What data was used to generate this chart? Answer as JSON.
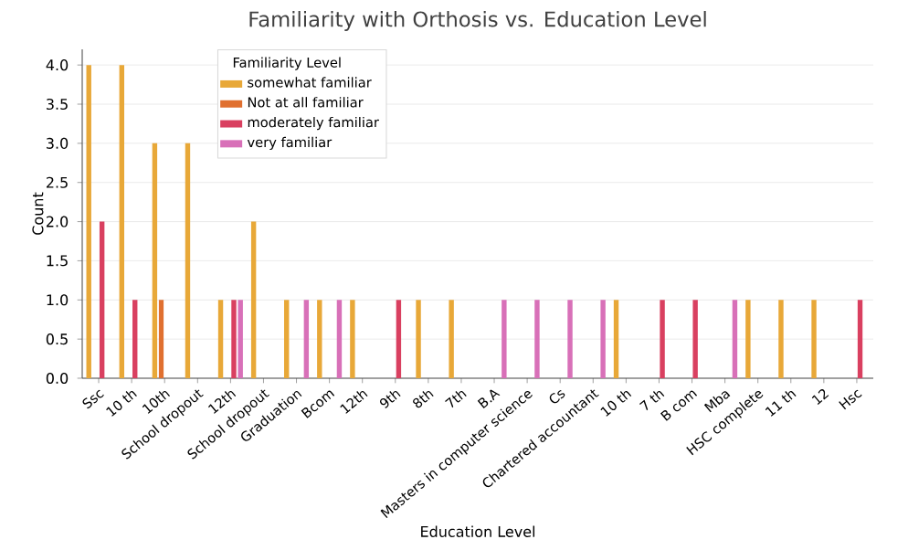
{
  "chart_data": {
    "type": "bar",
    "title": "Familiarity with Orthosis vs. Education Level",
    "xlabel": "Education Level",
    "ylabel": "Count",
    "legend_title": "Familiarity Level",
    "categories": [
      "Ssc",
      "10 th",
      "10th",
      "School dropout",
      "12th",
      "School dropout",
      "Graduation",
      "Bcom",
      "12th",
      "9th",
      "8th",
      "7th",
      "B.A",
      "Masters in computer science",
      "Cs",
      "Chartered accountant",
      "10 th",
      "7 th",
      "B com",
      "Mba",
      "HSC complete",
      "11 th",
      "12",
      "Hsc"
    ],
    "series": [
      {
        "name": "somewhat familiar",
        "color": "#e8a838",
        "values": [
          4,
          4,
          3,
          3,
          1,
          2,
          1,
          1,
          1,
          null,
          1,
          1,
          null,
          null,
          null,
          null,
          1,
          null,
          null,
          null,
          1,
          1,
          1,
          null
        ]
      },
      {
        "name": "Not at all familiar",
        "color": "#e07030",
        "values": [
          null,
          null,
          1,
          null,
          null,
          null,
          null,
          null,
          null,
          null,
          null,
          null,
          null,
          null,
          null,
          null,
          null,
          null,
          null,
          null,
          null,
          null,
          null,
          null
        ]
      },
      {
        "name": "moderately familiar",
        "color": "#d94060",
        "values": [
          2,
          1,
          null,
          null,
          1,
          null,
          null,
          null,
          null,
          1,
          null,
          null,
          null,
          null,
          null,
          null,
          null,
          1,
          1,
          null,
          null,
          null,
          null,
          1
        ]
      },
      {
        "name": "very familiar",
        "color": "#d870b8",
        "values": [
          null,
          null,
          null,
          null,
          1,
          null,
          1,
          1,
          null,
          null,
          null,
          null,
          1,
          1,
          1,
          1,
          null,
          null,
          null,
          1,
          null,
          null,
          null,
          null
        ]
      }
    ],
    "ylim": [
      0,
      4.2
    ],
    "yticks": [
      {
        "value": 0,
        "label": "0.0"
      },
      {
        "value": 0.5,
        "label": "0.5"
      },
      {
        "value": 1,
        "label": "1.0"
      },
      {
        "value": 1.5,
        "label": "1.5"
      },
      {
        "value": 2,
        "label": "2.0"
      },
      {
        "value": 2.5,
        "label": "2.5"
      },
      {
        "value": 3,
        "label": "3.0"
      },
      {
        "value": 3.5,
        "label": "3.5"
      },
      {
        "value": 4,
        "label": "4.0"
      }
    ],
    "grid": "y",
    "legend": "top left"
  }
}
